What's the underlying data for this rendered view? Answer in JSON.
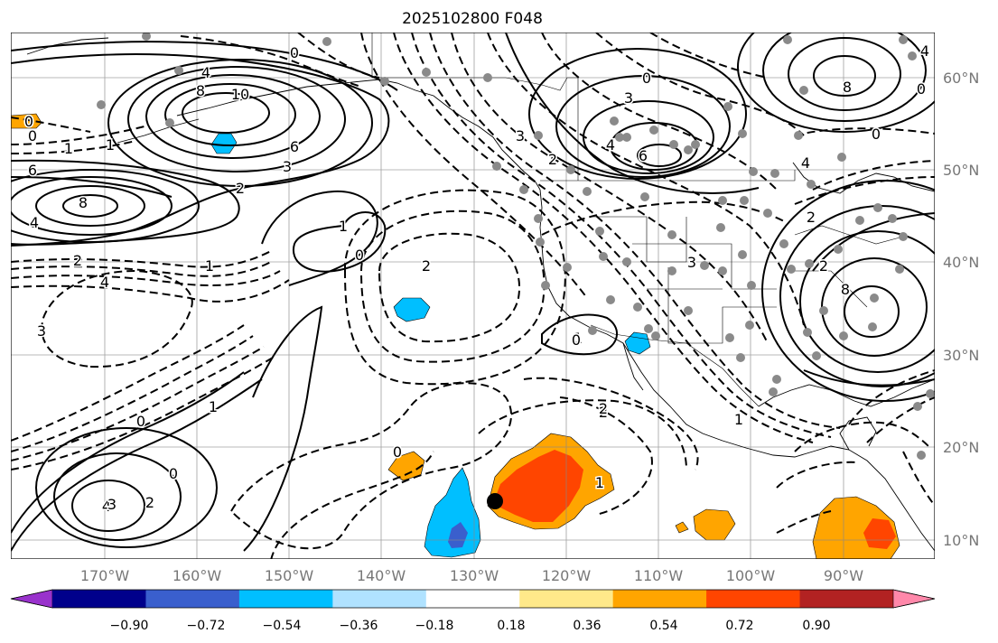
{
  "title": "2025102800 F048",
  "map": {
    "lon_labels": [
      "170°W",
      "160°W",
      "150°W",
      "140°W",
      "130°W",
      "120°W",
      "110°W",
      "100°W",
      "90°W"
    ],
    "lat_labels": [
      "60°N",
      "50°N",
      "40°N",
      "30°N",
      "20°N",
      "10°N"
    ]
  },
  "colorbar": {
    "ticks": [
      "−0.90",
      "−0.72",
      "−0.54",
      "−0.36",
      "−0.18",
      "0.18",
      "0.36",
      "0.54",
      "0.72",
      "0.90"
    ],
    "colors": [
      "#9932cc",
      "#00008b",
      "#3a5fcd",
      "#00bfff",
      "#b0e2ff",
      "#ffffff",
      "#ffe98a",
      "#ffa500",
      "#ff4500",
      "#b22222",
      "#ff88aa"
    ]
  },
  "contour_labels": [
    {
      "t": "0"
    },
    {
      "t": "4"
    },
    {
      "t": "8"
    },
    {
      "t": "10"
    },
    {
      "t": "6"
    },
    {
      "t": "3"
    },
    {
      "t": "2"
    },
    {
      "t": "1"
    },
    {
      "t": "6"
    },
    {
      "t": "8"
    },
    {
      "t": "4"
    },
    {
      "t": "2"
    },
    {
      "t": "0"
    },
    {
      "t": "1"
    },
    {
      "t": "0"
    },
    {
      "t": "4"
    },
    {
      "t": "3"
    },
    {
      "t": "2"
    },
    {
      "t": "1"
    },
    {
      "t": "0"
    },
    {
      "t": "0"
    },
    {
      "t": "1"
    },
    {
      "t": "4"
    },
    {
      "t": "3"
    },
    {
      "t": "2"
    },
    {
      "t": "0"
    },
    {
      "t": "2"
    },
    {
      "t": "1"
    },
    {
      "t": "2"
    },
    {
      "t": "1"
    },
    {
      "t": "0"
    },
    {
      "t": "3"
    },
    {
      "t": "3"
    },
    {
      "t": "4"
    },
    {
      "t": "6"
    },
    {
      "t": "0"
    },
    {
      "t": "2"
    },
    {
      "t": "8"
    },
    {
      "t": "4"
    },
    {
      "t": "0"
    },
    {
      "t": "2"
    },
    {
      "t": "8"
    },
    {
      "t": "0"
    },
    {
      "t": "3"
    },
    {
      "t": "1"
    },
    {
      "t": "0"
    },
    {
      "t": "1"
    },
    {
      "t": "2"
    },
    {
      "t": "6"
    },
    {
      "t": "4"
    }
  ]
}
